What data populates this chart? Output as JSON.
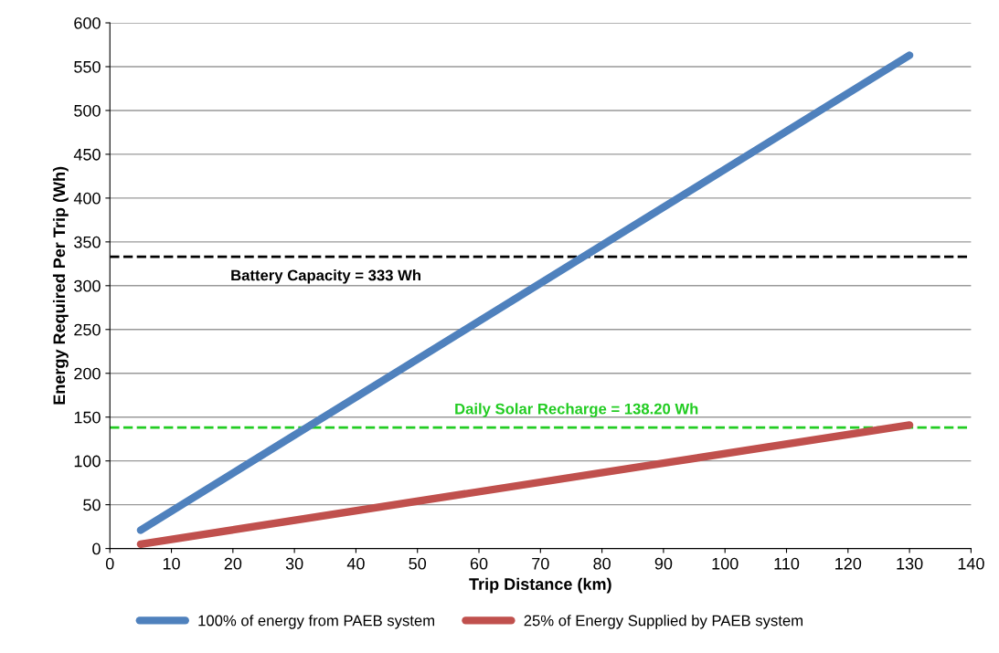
{
  "chart_data": {
    "type": "line",
    "xlabel": "Trip Distance (km)",
    "ylabel": "Energy Required Per Trip (Wh)",
    "x": [
      5,
      130
    ],
    "series": [
      {
        "name": "100% of energy from PAEB system",
        "color": "#4f81bd",
        "values": [
          21,
          563
        ]
      },
      {
        "name": "25% of Energy Supplied by PAEB system",
        "color": "#c0504d",
        "values": [
          5,
          141
        ]
      }
    ],
    "ref_lines": [
      {
        "axis": "y",
        "value": 333,
        "label": "Battery Capacity = 333 Wh",
        "color": "#000000",
        "line_style": "dashed"
      },
      {
        "axis": "y",
        "value": 138.2,
        "label": "Daily Solar Recharge = 138.20 Wh",
        "color": "#22cc22",
        "line_style": "dashed"
      }
    ],
    "xlim": [
      0,
      140
    ],
    "xticks": [
      0,
      10,
      20,
      30,
      40,
      50,
      60,
      70,
      80,
      90,
      100,
      110,
      120,
      130,
      140
    ],
    "ylim": [
      0,
      600
    ],
    "yticks": [
      0,
      50,
      100,
      150,
      200,
      250,
      300,
      350,
      400,
      450,
      500,
      550,
      600
    ],
    "grid": "y",
    "legend": "bottom",
    "marker": "none",
    "line_style": "solid"
  }
}
